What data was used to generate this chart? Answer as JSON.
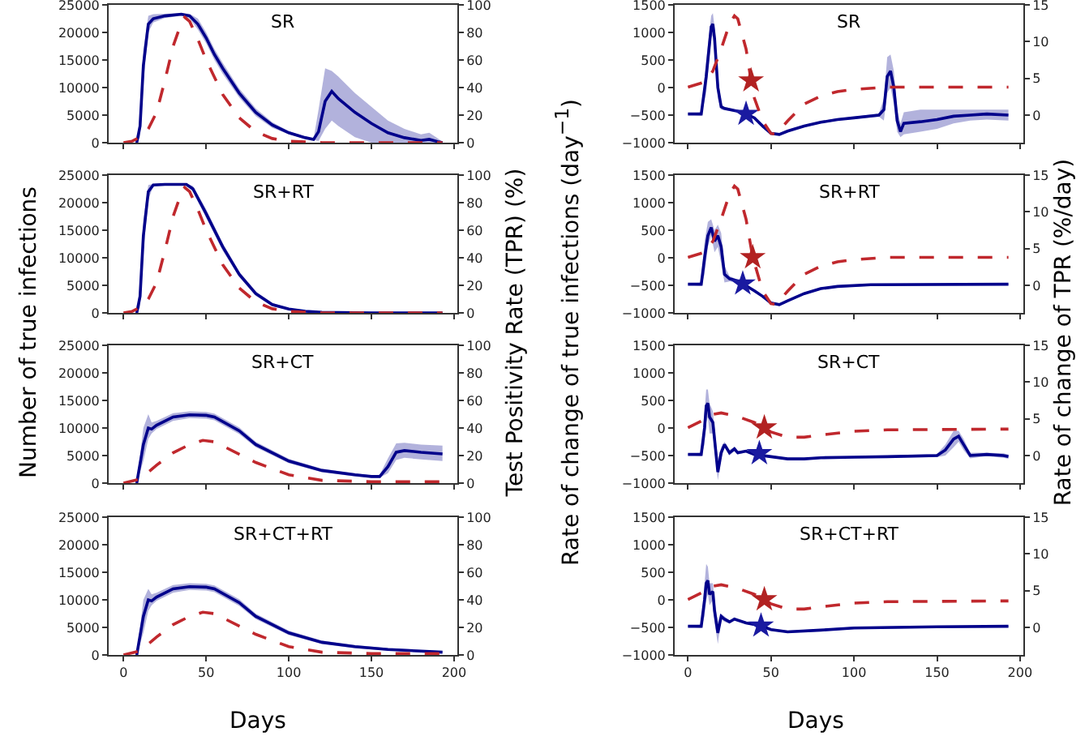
{
  "chart_data": [
    {
      "type": "line",
      "title": "SR",
      "xlim": [
        -9,
        202
      ],
      "xticks": [
        0,
        50,
        100,
        150,
        200
      ],
      "ylim": [
        0,
        25000
      ],
      "yticks": [
        0,
        5000,
        10000,
        15000,
        20000,
        25000
      ],
      "y2lim": [
        0,
        100
      ],
      "y2ticks": [
        0,
        20,
        40,
        60,
        80,
        100
      ],
      "tick_labels": "y",
      "series": [
        {
          "color": "#00008b",
          "x": [
            8,
            10,
            12,
            15,
            18,
            25,
            35,
            40,
            45,
            50,
            55,
            60,
            70,
            80,
            90,
            100,
            110,
            115,
            118,
            122,
            126,
            130,
            140,
            150,
            160,
            170,
            180,
            185,
            190,
            193
          ],
          "values": [
            0,
            3000,
            14000,
            21500,
            22500,
            23000,
            23300,
            23000,
            21500,
            19000,
            16000,
            13500,
            9000,
            5500,
            3200,
            1800,
            900,
            600,
            2000,
            7500,
            9300,
            8000,
            5500,
            3500,
            1800,
            900,
            400,
            600,
            200,
            0
          ],
          "upper": [
            0,
            5000,
            17000,
            23000,
            23300,
            23400,
            23500,
            23400,
            22500,
            20000,
            17000,
            14500,
            9800,
            6200,
            3700,
            2100,
            1100,
            700,
            6000,
            13500,
            13000,
            12000,
            9000,
            6500,
            4000,
            2500,
            1500,
            1800,
            800,
            200
          ],
          "lower": [
            0,
            1000,
            11000,
            20000,
            21800,
            22600,
            23000,
            22500,
            20500,
            18000,
            15000,
            12500,
            8200,
            4800,
            2700,
            1500,
            700,
            500,
            300,
            2500,
            4000,
            3000,
            1000,
            0,
            0,
            0,
            0,
            0,
            0,
            0
          ]
        },
        {
          "color": "#c0282d",
          "axis": "y2",
          "line_style": "dashed",
          "x": [
            0,
            5,
            10,
            15,
            20,
            25,
            30,
            35,
            37,
            40,
            45,
            50,
            60,
            70,
            80,
            90,
            100,
            120,
            150,
            193
          ],
          "values": [
            0,
            1,
            4,
            10,
            22,
            45,
            70,
            87,
            91,
            88,
            75,
            60,
            35,
            18,
            8,
            3,
            1,
            0,
            0,
            0
          ]
        }
      ]
    },
    {
      "type": "line",
      "title": "SR",
      "xlim": [
        -8,
        202
      ],
      "xticks": [
        0,
        50,
        100,
        150,
        200
      ],
      "ylim": [
        -1000,
        1500
      ],
      "yticks": [
        -1000,
        -500,
        0,
        500,
        1000,
        1500
      ],
      "y2lim": [
        -3.75,
        15
      ],
      "y2ticks": [
        0,
        5,
        10,
        15
      ],
      "tick_labels": "y",
      "series": [
        {
          "color": "#00008b",
          "x": [
            0,
            8,
            11,
            14,
            15,
            16,
            18,
            20,
            22,
            30,
            35,
            40,
            45,
            50,
            55,
            60,
            70,
            80,
            90,
            100,
            115,
            118,
            120,
            122,
            124,
            126,
            128,
            130,
            140,
            150,
            160,
            170,
            180,
            193
          ],
          "values": [
            -480,
            -480,
            200,
            1100,
            1150,
            900,
            0,
            -350,
            -380,
            -430,
            -480,
            -550,
            -700,
            -830,
            -850,
            -790,
            -700,
            -630,
            -580,
            -550,
            -500,
            -400,
            200,
            300,
            0,
            -600,
            -800,
            -650,
            -620,
            -580,
            -520,
            -500,
            -480,
            -500
          ],
          "upper": [
            -470,
            -450,
            500,
            1300,
            1350,
            1100,
            200,
            -300,
            -350,
            -410,
            -460,
            -530,
            -680,
            -810,
            -830,
            -770,
            -680,
            -610,
            -560,
            -530,
            -470,
            -200,
            550,
            600,
            300,
            -400,
            -650,
            -450,
            -400,
            -400,
            -400,
            -400,
            -400,
            -400
          ],
          "lower": [
            -490,
            -510,
            -100,
            900,
            950,
            700,
            -200,
            -400,
            -410,
            -450,
            -500,
            -570,
            -720,
            -850,
            -870,
            -810,
            -720,
            -650,
            -600,
            -570,
            -530,
            -600,
            -100,
            0,
            -300,
            -800,
            -900,
            -850,
            -800,
            -750,
            -650,
            -600,
            -580,
            -600
          ]
        },
        {
          "color": "#c0282d",
          "axis": "y2",
          "line_style": "dashed",
          "x": [
            0,
            10,
            15,
            20,
            25,
            28,
            30,
            35,
            38,
            40,
            45,
            50,
            53,
            60,
            70,
            80,
            90,
            100,
            120,
            193
          ],
          "values": [
            3.8,
            4.5,
            6,
            9,
            12.4,
            13.5,
            13.1,
            9,
            4.7,
            2.3,
            -0.8,
            -2.5,
            -2.6,
            -0.8,
            1.5,
            2.6,
            3.2,
            3.5,
            3.8,
            3.8
          ]
        },
        {
          "type": "scatter",
          "marker": "star",
          "color": "#1a1aa0",
          "x": [
            35
          ],
          "values": [
            -480
          ]
        },
        {
          "type": "scatter",
          "marker": "star",
          "color": "#b22222",
          "axis": "y2",
          "x": [
            38
          ],
          "values": [
            4.7
          ]
        }
      ]
    },
    {
      "type": "line",
      "title": "SR+RT",
      "xlim": [
        -9,
        202
      ],
      "xticks": [
        0,
        50,
        100,
        150,
        200
      ],
      "ylim": [
        0,
        25000
      ],
      "yticks": [
        0,
        5000,
        10000,
        15000,
        20000,
        25000
      ],
      "y2lim": [
        0,
        100
      ],
      "y2ticks": [
        0,
        20,
        40,
        60,
        80,
        100
      ],
      "tick_labels": "y",
      "series": [
        {
          "color": "#00008b",
          "x": [
            8,
            10,
            12,
            15,
            18,
            25,
            38,
            42,
            50,
            60,
            70,
            80,
            90,
            100,
            110,
            120,
            150,
            193
          ],
          "values": [
            0,
            3000,
            14000,
            22000,
            23200,
            23300,
            23300,
            22500,
            18000,
            12000,
            7000,
            3500,
            1500,
            700,
            300,
            100,
            0,
            0
          ],
          "upper": [
            0,
            5000,
            17000,
            23200,
            23400,
            23500,
            23500,
            23000,
            18800,
            12700,
            7500,
            3900,
            1800,
            900,
            400,
            150,
            50,
            50
          ],
          "lower": [
            0,
            1000,
            11000,
            20500,
            23000,
            23100,
            23100,
            22000,
            17200,
            11300,
            6500,
            3100,
            1200,
            500,
            200,
            50,
            0,
            0
          ]
        },
        {
          "color": "#c0282d",
          "axis": "y2",
          "line_style": "dashed",
          "x": [
            0,
            5,
            10,
            15,
            20,
            25,
            30,
            35,
            37,
            40,
            45,
            50,
            60,
            70,
            80,
            90,
            100,
            120,
            150,
            193
          ],
          "values": [
            0,
            1,
            4,
            10,
            22,
            45,
            70,
            87,
            91,
            88,
            75,
            60,
            35,
            18,
            8,
            3,
            1,
            0,
            0,
            0
          ]
        }
      ]
    },
    {
      "type": "line",
      "title": "SR+RT",
      "xlim": [
        -8,
        202
      ],
      "xticks": [
        0,
        50,
        100,
        150,
        200
      ],
      "ylim": [
        -1000,
        1500
      ],
      "yticks": [
        -1000,
        -500,
        0,
        500,
        1000,
        1500
      ],
      "y2lim": [
        -3.75,
        15
      ],
      "y2ticks": [
        0,
        5,
        10,
        15
      ],
      "tick_labels": "y",
      "series": [
        {
          "color": "#00008b",
          "x": [
            0,
            8,
            10,
            12,
            14,
            16,
            18,
            20,
            22,
            25,
            30,
            33,
            40,
            45,
            50,
            55,
            60,
            70,
            80,
            90,
            110,
            193
          ],
          "values": [
            -480,
            -480,
            0,
            400,
            550,
            300,
            400,
            200,
            -300,
            -380,
            -420,
            -470,
            -600,
            -700,
            -820,
            -850,
            -780,
            -650,
            -560,
            -520,
            -490,
            -480
          ],
          "upper": [
            -470,
            -450,
            300,
            650,
            700,
            500,
            600,
            450,
            -150,
            -330,
            -400,
            -450,
            -580,
            -680,
            -800,
            -830,
            -760,
            -630,
            -540,
            -500,
            -470,
            -470
          ],
          "lower": [
            -490,
            -510,
            -300,
            200,
            400,
            100,
            200,
            -100,
            -450,
            -430,
            -440,
            -490,
            -620,
            -720,
            -840,
            -870,
            -800,
            -670,
            -580,
            -540,
            -510,
            -490
          ]
        },
        {
          "color": "#c0282d",
          "axis": "y2",
          "line_style": "dashed",
          "x": [
            0,
            10,
            15,
            20,
            25,
            28,
            30,
            35,
            39,
            41,
            45,
            50,
            53,
            60,
            70,
            80,
            90,
            100,
            120,
            193
          ],
          "values": [
            3.8,
            4.5,
            6,
            9,
            12.4,
            13.5,
            13.1,
            9,
            3.8,
            2.3,
            -0.8,
            -2.5,
            -2.6,
            -0.8,
            1.5,
            2.6,
            3.2,
            3.5,
            3.8,
            3.8
          ]
        },
        {
          "type": "scatter",
          "marker": "star",
          "color": "#1a1aa0",
          "x": [
            33
          ],
          "values": [
            -470
          ]
        },
        {
          "type": "scatter",
          "marker": "star",
          "color": "#b22222",
          "axis": "y2",
          "x": [
            39
          ],
          "values": [
            3.8
          ]
        }
      ]
    },
    {
      "type": "line",
      "title": "SR+CT",
      "xlim": [
        -9,
        202
      ],
      "xticks": [
        0,
        50,
        100,
        150,
        200
      ],
      "ylim": [
        0,
        25000
      ],
      "yticks": [
        0,
        5000,
        10000,
        15000,
        20000,
        25000
      ],
      "y2lim": [
        0,
        100
      ],
      "y2ticks": [
        0,
        20,
        40,
        60,
        80,
        100
      ],
      "tick_labels": "y",
      "series": [
        {
          "color": "#00008b",
          "x": [
            8,
            12,
            15,
            17,
            20,
            30,
            40,
            50,
            55,
            70,
            80,
            100,
            120,
            140,
            150,
            155,
            160,
            165,
            170,
            180,
            193
          ],
          "values": [
            0,
            7000,
            10000,
            9800,
            10500,
            12000,
            12400,
            12300,
            12000,
            9500,
            7000,
            4000,
            2300,
            1500,
            1200,
            1200,
            3000,
            5600,
            5900,
            5600,
            5300
          ],
          "upper": [
            0,
            10000,
            12500,
            11000,
            11300,
            12700,
            13000,
            12900,
            12600,
            10100,
            7500,
            4400,
            2600,
            1800,
            1400,
            1500,
            4500,
            7200,
            7300,
            7000,
            6800
          ],
          "lower": [
            0,
            4000,
            8000,
            9000,
            9800,
            11300,
            11800,
            11700,
            11400,
            8900,
            6500,
            3600,
            2000,
            1200,
            1000,
            1000,
            1800,
            4200,
            4600,
            4300,
            4000
          ]
        },
        {
          "color": "#c0282d",
          "axis": "y2",
          "line_style": "dashed",
          "x": [
            0,
            10,
            20,
            30,
            40,
            48,
            55,
            70,
            80,
            100,
            120,
            150,
            193
          ],
          "values": [
            0,
            3,
            13,
            22,
            28,
            31,
            30,
            21,
            15,
            6,
            2,
            1,
            1
          ]
        }
      ]
    },
    {
      "type": "line",
      "title": "SR+CT",
      "xlim": [
        -8,
        202
      ],
      "xticks": [
        0,
        50,
        100,
        150,
        200
      ],
      "ylim": [
        -1000,
        1500
      ],
      "yticks": [
        -1000,
        -500,
        0,
        500,
        1000,
        1500
      ],
      "y2lim": [
        -3.75,
        15
      ],
      "y2ticks": [
        0,
        5,
        10,
        15
      ],
      "tick_labels": "y",
      "series": [
        {
          "color": "#00008b",
          "x": [
            0,
            8,
            10,
            11,
            12,
            13,
            15,
            16,
            18,
            20,
            22,
            25,
            28,
            30,
            35,
            40,
            50,
            60,
            70,
            80,
            100,
            120,
            150,
            155,
            160,
            163,
            166,
            170,
            180,
            190,
            193
          ],
          "values": [
            -480,
            -480,
            0,
            400,
            450,
            200,
            100,
            -200,
            -800,
            -450,
            -300,
            -450,
            -380,
            -450,
            -420,
            -480,
            -520,
            -560,
            -560,
            -540,
            -530,
            -520,
            -500,
            -400,
            -200,
            -150,
            -300,
            -500,
            -480,
            -500,
            -520
          ],
          "upper": [
            -470,
            -450,
            300,
            700,
            700,
            450,
            300,
            0,
            -550,
            -350,
            -250,
            -400,
            -340,
            -420,
            -400,
            -460,
            -500,
            -540,
            -540,
            -520,
            -510,
            -500,
            -470,
            -300,
            -50,
            -50,
            -200,
            -450,
            -450,
            -460,
            -480
          ],
          "lower": [
            -490,
            -510,
            -300,
            100,
            200,
            -100,
            -100,
            -400,
            -950,
            -550,
            -350,
            -500,
            -420,
            -480,
            -440,
            -500,
            -540,
            -580,
            -580,
            -560,
            -550,
            -540,
            -530,
            -500,
            -350,
            -250,
            -400,
            -550,
            -510,
            -540,
            -560
          ]
        },
        {
          "color": "#c0282d",
          "axis": "y2",
          "line_style": "dashed",
          "x": [
            0,
            10,
            15,
            20,
            30,
            40,
            46,
            50,
            60,
            70,
            80,
            100,
            120,
            193
          ],
          "values": [
            3.8,
            4.9,
            5.6,
            5.8,
            5.3,
            4.5,
            3.8,
            3.2,
            2.5,
            2.5,
            2.8,
            3.3,
            3.5,
            3.6
          ]
        },
        {
          "type": "scatter",
          "marker": "star",
          "color": "#1a1aa0",
          "x": [
            43
          ],
          "values": [
            -460
          ]
        },
        {
          "type": "scatter",
          "marker": "star",
          "color": "#b22222",
          "axis": "y2",
          "x": [
            46
          ],
          "values": [
            3.8
          ]
        }
      ]
    },
    {
      "type": "line",
      "title": "SR+CT+RT",
      "xlabel": "Days",
      "ylabel": "Number of true infections",
      "y2label": "Test Positivity Rate (TPR) (%)",
      "xlim": [
        -9,
        202
      ],
      "xticks": [
        0,
        50,
        100,
        150,
        200
      ],
      "ylim": [
        0,
        25000
      ],
      "yticks": [
        0,
        5000,
        10000,
        15000,
        20000,
        25000
      ],
      "y2lim": [
        0,
        100
      ],
      "y2ticks": [
        0,
        20,
        40,
        60,
        80,
        100
      ],
      "series": [
        {
          "color": "#00008b",
          "x": [
            8,
            12,
            15,
            17,
            20,
            30,
            40,
            50,
            55,
            70,
            80,
            100,
            120,
            140,
            160,
            180,
            193
          ],
          "values": [
            0,
            7000,
            10000,
            9800,
            10500,
            12000,
            12400,
            12300,
            12000,
            9500,
            7000,
            4000,
            2300,
            1500,
            1000,
            700,
            500
          ],
          "upper": [
            0,
            10000,
            12000,
            11000,
            11300,
            12700,
            13000,
            12900,
            12600,
            10100,
            7500,
            4400,
            2600,
            1800,
            1250,
            900,
            700
          ],
          "lower": [
            0,
            4000,
            8000,
            9000,
            9800,
            11300,
            11800,
            11700,
            11400,
            8900,
            6500,
            3600,
            2000,
            1200,
            800,
            500,
            300
          ]
        },
        {
          "color": "#c0282d",
          "axis": "y2",
          "line_style": "dashed",
          "x": [
            0,
            10,
            20,
            30,
            40,
            48,
            55,
            70,
            80,
            100,
            120,
            150,
            193
          ],
          "values": [
            0,
            3,
            13,
            22,
            28,
            31,
            30,
            21,
            15,
            6,
            2,
            1,
            1
          ]
        }
      ]
    },
    {
      "type": "line",
      "title": "SR+CT+RT",
      "xlabel": "Days",
      "ylabel": "Rate of change of true infections (day$^{−1}$)",
      "y2label": "Rate of change of TPR (%/day)",
      "xlim": [
        -8,
        202
      ],
      "xticks": [
        0,
        50,
        100,
        150,
        200
      ],
      "ylim": [
        -1000,
        1500
      ],
      "yticks": [
        -1000,
        -500,
        0,
        500,
        1000,
        1500
      ],
      "y2lim": [
        -3.75,
        15
      ],
      "y2ticks": [
        0,
        5,
        10,
        15
      ],
      "series": [
        {
          "color": "#00008b",
          "x": [
            0,
            8,
            10,
            11,
            12,
            13,
            15,
            16,
            18,
            20,
            22,
            25,
            28,
            35,
            44,
            50,
            60,
            80,
            100,
            150,
            193
          ],
          "values": [
            -480,
            -480,
            0,
            300,
            350,
            100,
            150,
            -200,
            -600,
            -300,
            -350,
            -400,
            -350,
            -420,
            -470,
            -540,
            -580,
            -550,
            -510,
            -490,
            -480
          ],
          "upper": [
            -470,
            -450,
            300,
            650,
            600,
            300,
            300,
            0,
            -400,
            -250,
            -300,
            -370,
            -330,
            -400,
            -450,
            -520,
            -560,
            -530,
            -490,
            -470,
            -470
          ],
          "lower": [
            -490,
            -510,
            -300,
            0,
            100,
            -100,
            0,
            -400,
            -800,
            -350,
            -400,
            -430,
            -370,
            -440,
            -490,
            -560,
            -600,
            -570,
            -530,
            -510,
            -490
          ]
        },
        {
          "color": "#c0282d",
          "axis": "y2",
          "line_style": "dashed",
          "x": [
            0,
            10,
            15,
            20,
            30,
            40,
            46,
            50,
            60,
            70,
            80,
            100,
            120,
            193
          ],
          "values": [
            3.8,
            4.9,
            5.6,
            5.8,
            5.3,
            4.5,
            3.8,
            3.2,
            2.5,
            2.5,
            2.8,
            3.3,
            3.5,
            3.6
          ]
        },
        {
          "type": "scatter",
          "marker": "star",
          "color": "#1a1aa0",
          "x": [
            44
          ],
          "values": [
            -470
          ]
        },
        {
          "type": "scatter",
          "marker": "star",
          "color": "#b22222",
          "axis": "y2",
          "x": [
            46
          ],
          "values": [
            3.8
          ]
        }
      ]
    }
  ]
}
